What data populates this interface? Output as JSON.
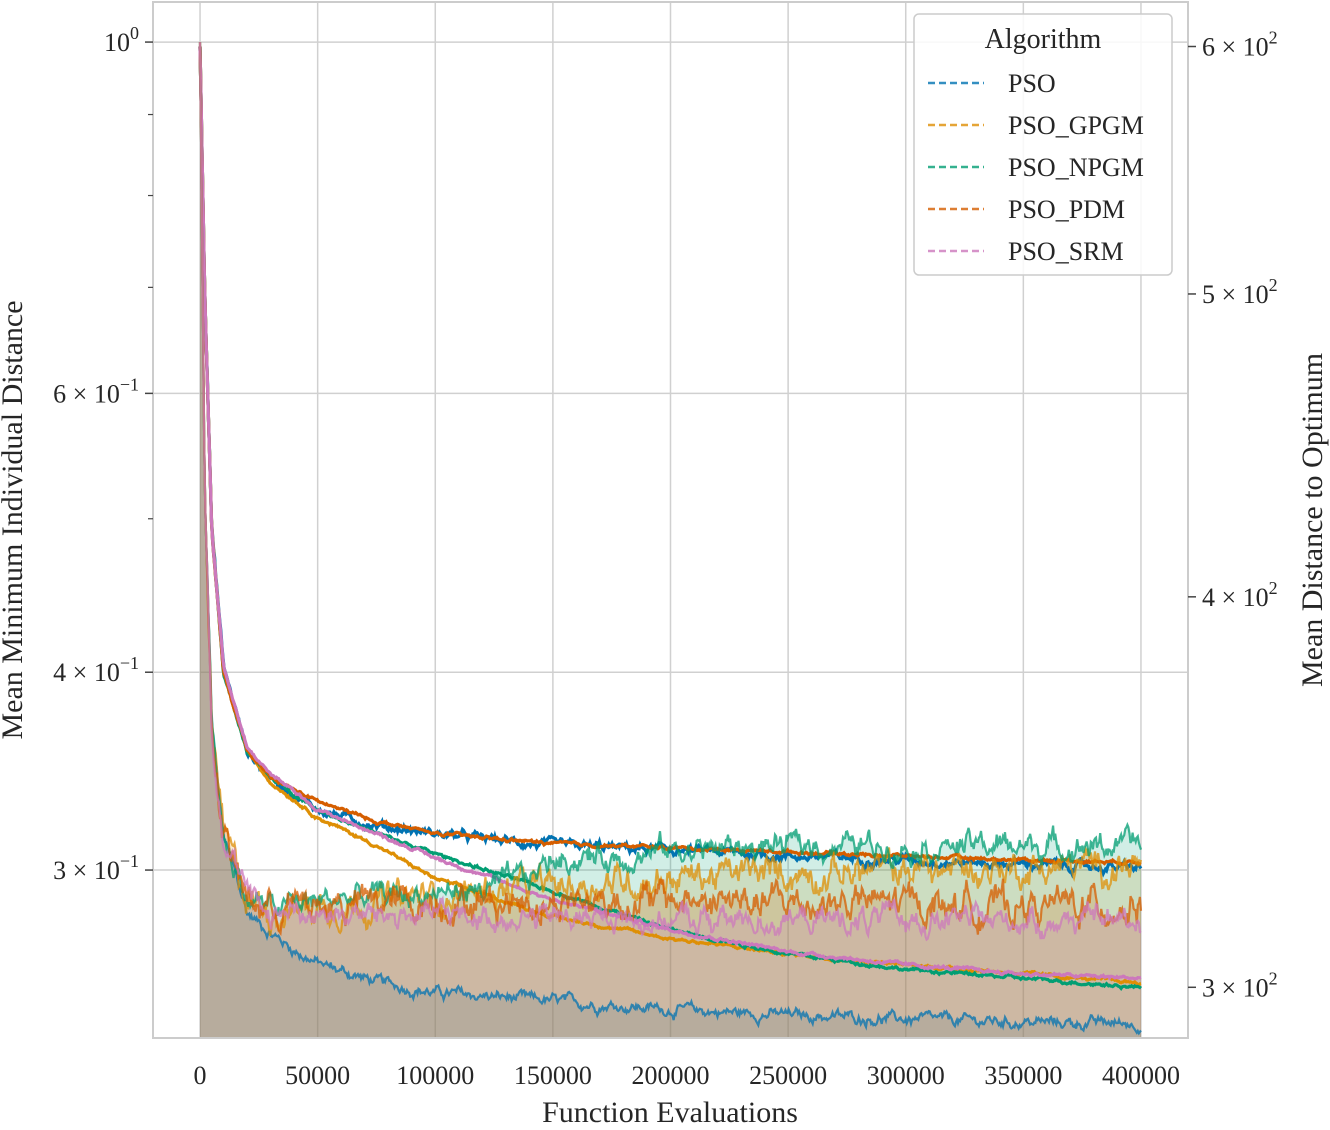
{
  "chart_data": {
    "type": "line",
    "xlabel": "Function Evaluations",
    "ylabel_left": "Mean Minimum Individual Distance",
    "ylabel_right": "Mean Distance to Optimum",
    "x_ticks": [
      "0",
      "50000",
      "100000",
      "150000",
      "200000",
      "250000",
      "300000",
      "350000",
      "400000"
    ],
    "x_tick_values": [
      0,
      50000,
      100000,
      150000,
      200000,
      250000,
      300000,
      350000,
      400000
    ],
    "xlim": [
      -20000,
      420000
    ],
    "left_axis": {
      "scale": "log",
      "ylim": [
        0.235,
        1.06
      ],
      "major_ticks": [
        {
          "value": 1.0,
          "base": "10",
          "exp": "0"
        },
        {
          "value": 0.6,
          "base": "6 × 10",
          "exp": "−1"
        },
        {
          "value": 0.4,
          "base": "4 × 10",
          "exp": "−1"
        },
        {
          "value": 0.3,
          "base": "3 × 10",
          "exp": "−1"
        }
      ],
      "minor_ticks": [
        0.9,
        0.8,
        0.7,
        0.5
      ]
    },
    "right_axis": {
      "scale": "log",
      "ylim": [
        289,
        620
      ],
      "major_ticks": [
        {
          "value": 600,
          "base": "6 × 10",
          "exp": "2"
        },
        {
          "value": 500,
          "base": "5 × 10",
          "exp": "2"
        },
        {
          "value": 400,
          "base": "4 × 10",
          "exp": "2"
        },
        {
          "value": 300,
          "base": "3 × 10",
          "exp": "2"
        }
      ]
    },
    "grid": true,
    "legend": {
      "title": "Algorithm",
      "position": "top-right"
    },
    "series": [
      {
        "name": "PSO",
        "color": "#0173b2",
        "min_distance_x": [
          0,
          2000,
          5000,
          10000,
          20000,
          30000,
          40000,
          50000,
          75000,
          100000,
          150000,
          200000,
          250000,
          300000,
          350000,
          400000
        ],
        "min_distance_y": [
          1.0,
          0.52,
          0.37,
          0.315,
          0.282,
          0.274,
          0.267,
          0.262,
          0.255,
          0.251,
          0.248,
          0.245,
          0.243,
          0.2415,
          0.2405,
          0.24
        ],
        "optimum_distance_x": [
          0,
          2000,
          5000,
          10000,
          20000,
          30000,
          50000,
          75000,
          100000,
          150000,
          200000,
          250000,
          300000,
          350000,
          400000
        ],
        "optimum_distance_y": [
          600,
          500,
          420,
          380,
          357,
          350,
          342,
          338,
          336,
          333,
          332,
          330.5,
          329.5,
          328.5,
          327.5
        ]
      },
      {
        "name": "PSO_GPGM",
        "color": "#de8f05",
        "min_distance_x": [
          0,
          2000,
          5000,
          10000,
          20000,
          30000,
          50000,
          75000,
          100000,
          150000,
          200000,
          250000,
          300000,
          350000,
          400000
        ],
        "min_distance_y": [
          1.0,
          0.52,
          0.37,
          0.315,
          0.288,
          0.283,
          0.285,
          0.287,
          0.289,
          0.293,
          0.297,
          0.299,
          0.3,
          0.301,
          0.302
        ],
        "optimum_distance_x": [
          0,
          2000,
          5000,
          10000,
          20000,
          30000,
          50000,
          75000,
          100000,
          150000,
          200000,
          250000,
          300000,
          350000,
          400000
        ],
        "optimum_distance_y": [
          600,
          500,
          420,
          378,
          357,
          349,
          340,
          333,
          325,
          316,
          311,
          307.5,
          305,
          303,
          301
        ]
      },
      {
        "name": "PSO_NPGM",
        "color": "#029e73",
        "min_distance_x": [
          0,
          2000,
          5000,
          10000,
          20000,
          30000,
          50000,
          75000,
          100000,
          125000,
          140000,
          150000,
          175000,
          200000,
          250000,
          300000,
          350000,
          400000
        ],
        "min_distance_y": [
          1.0,
          0.52,
          0.37,
          0.315,
          0.288,
          0.284,
          0.287,
          0.289,
          0.29,
          0.292,
          0.297,
          0.305,
          0.306,
          0.309,
          0.311,
          0.311,
          0.311,
          0.311
        ],
        "optimum_distance_x": [
          0,
          2000,
          5000,
          10000,
          20000,
          30000,
          50000,
          75000,
          100000,
          150000,
          200000,
          250000,
          300000,
          350000,
          400000
        ],
        "optimum_distance_y": [
          600,
          500,
          420,
          378,
          357,
          350,
          342,
          336,
          331,
          322,
          313,
          307.5,
          304,
          302,
          300
        ]
      },
      {
        "name": "PSO_PDM",
        "color": "#d55e00",
        "min_distance_x": [
          0,
          2000,
          5000,
          10000,
          20000,
          30000,
          50000,
          75000,
          100000,
          150000,
          200000,
          250000,
          300000,
          350000,
          400000
        ],
        "min_distance_y": [
          1.0,
          0.52,
          0.37,
          0.315,
          0.288,
          0.284,
          0.285,
          0.286,
          0.287,
          0.287,
          0.287,
          0.286,
          0.286,
          0.285,
          0.285
        ],
        "optimum_distance_x": [
          0,
          2000,
          5000,
          10000,
          20000,
          30000,
          50000,
          75000,
          100000,
          150000,
          200000,
          250000,
          300000,
          350000,
          400000
        ],
        "optimum_distance_y": [
          600,
          500,
          420,
          378,
          357,
          350,
          344,
          339,
          336,
          333.5,
          332.5,
          331.5,
          330.5,
          329.5,
          329
        ]
      },
      {
        "name": "PSO_SRM",
        "color": "#cc78bc",
        "min_distance_x": [
          0,
          2000,
          5000,
          10000,
          20000,
          30000,
          50000,
          75000,
          100000,
          150000,
          200000,
          250000,
          300000,
          350000,
          400000
        ],
        "min_distance_y": [
          1.0,
          0.52,
          0.37,
          0.315,
          0.288,
          0.283,
          0.282,
          0.281,
          0.281,
          0.28,
          0.279,
          0.279,
          0.279,
          0.279,
          0.279
        ],
        "optimum_distance_x": [
          0,
          2000,
          5000,
          10000,
          20000,
          30000,
          50000,
          75000,
          100000,
          150000,
          200000,
          250000,
          300000,
          350000,
          400000
        ],
        "optimum_distance_y": [
          600,
          500,
          420,
          380,
          358,
          351,
          342,
          336,
          330,
          320,
          313,
          308,
          305,
          303,
          302
        ]
      }
    ]
  }
}
